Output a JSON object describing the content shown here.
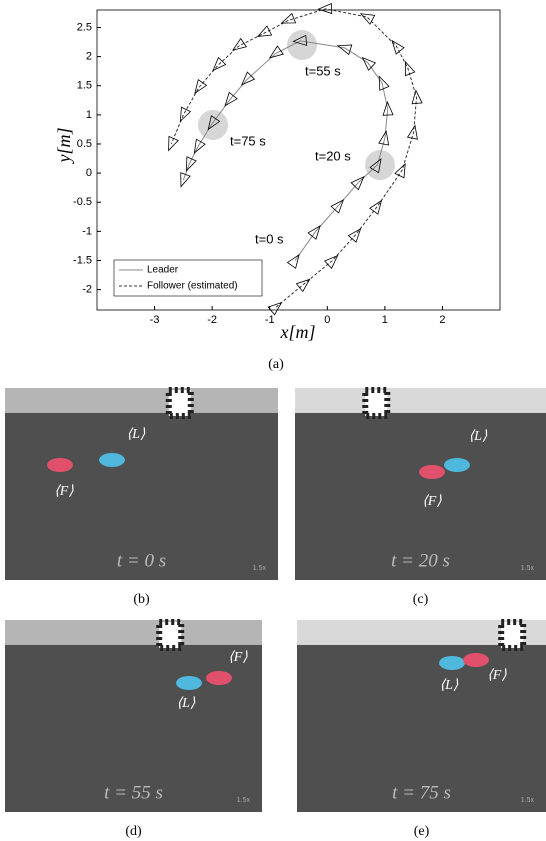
{
  "chart_data": {
    "type": "line",
    "xlabel": "x[m]",
    "ylabel": "y[m]",
    "xlim": [
      -4,
      3
    ],
    "ylim": [
      -2.35,
      2.8
    ],
    "xticks": [
      -3,
      -2,
      -1,
      0,
      1,
      2
    ],
    "yticks": [
      -2,
      -1.5,
      -1,
      -0.5,
      0,
      0.5,
      1,
      1.5,
      2,
      2.5
    ],
    "legend": "lower left",
    "annotations": [
      "t=0 s",
      "t=20 s",
      "t=55 s",
      "t=75 s"
    ],
    "series": [
      {
        "name": "Leader",
        "color": "#888888",
        "dash": false,
        "x": [
          -0.56,
          -0.2,
          0.2,
          0.55,
          0.87,
          1.0,
          1.05,
          0.95,
          0.7,
          0.3,
          -0.47,
          -0.9,
          -1.4,
          -1.7,
          -2.0,
          -2.25,
          -2.4,
          -2.5
        ],
        "values": [
          -1.5,
          -1.0,
          -0.55,
          -0.15,
          0.14,
          0.6,
          1.1,
          1.55,
          1.9,
          2.15,
          2.27,
          2.05,
          1.6,
          1.25,
          0.85,
          0.45,
          0.15,
          -0.12
        ]
      },
      {
        "name": "Follower (estimated)",
        "color": "#333333",
        "dash": true,
        "x": [
          -0.89,
          -0.4,
          0.09,
          0.5,
          0.87,
          1.3,
          1.5,
          1.55,
          1.4,
          1.2,
          0.69,
          -0.03,
          -0.68,
          -1.1,
          -1.54,
          -1.9,
          -2.23,
          -2.5,
          -2.71
        ],
        "values": [
          -2.3,
          -1.9,
          -1.5,
          -1.05,
          -0.57,
          0.05,
          0.7,
          1.3,
          1.8,
          2.18,
          2.68,
          2.82,
          2.62,
          2.4,
          2.18,
          1.85,
          1.47,
          1.0,
          0.5
        ]
      }
    ],
    "caption": "(a)"
  },
  "panels": [
    {
      "caption": "(b)",
      "time_label": "t = 0 s",
      "leader_label": "⟨L⟩",
      "follower_label": "⟨F⟩",
      "speed": "1.5x"
    },
    {
      "caption": "(c)",
      "time_label": "t = 20 s",
      "leader_label": "⟨L⟩",
      "follower_label": "⟨F⟩",
      "speed": "1.5x"
    },
    {
      "caption": "(d)",
      "time_label": "t = 55 s",
      "leader_label": "⟨L⟩",
      "follower_label": "⟨F⟩",
      "speed": "1.5x"
    },
    {
      "caption": "(e)",
      "time_label": "t = 75 s",
      "leader_label": "⟨L⟩",
      "follower_label": "⟨F⟩",
      "speed": "1.5x"
    }
  ]
}
